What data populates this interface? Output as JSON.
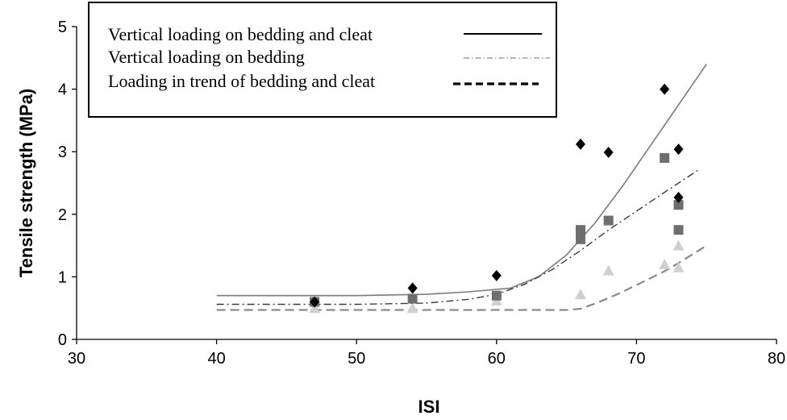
{
  "chart_data": {
    "type": "scatter",
    "xlabel": "ISI",
    "ylabel": "Tensile strength (MPa)",
    "xlim": [
      30,
      80
    ],
    "ylim": [
      0,
      5
    ],
    "xticks": [
      30,
      40,
      50,
      60,
      70,
      80
    ],
    "yticks": [
      0,
      1,
      2,
      3,
      4,
      5
    ],
    "grid": false,
    "legend": {
      "placement": "top-left",
      "entries": [
        "Vertical loading on bedding and cleat",
        "Vertical loading on bedding",
        "Loading in trend of bedding and cleat"
      ]
    },
    "series": [
      {
        "name": "Vertical loading on bedding and cleat",
        "marker": "diamond",
        "color": "#000000",
        "line_style": "solid",
        "points": [
          [
            47,
            0.6
          ],
          [
            54,
            0.82
          ],
          [
            60,
            1.02
          ],
          [
            66,
            3.12
          ],
          [
            68,
            2.99
          ],
          [
            72,
            4.0
          ],
          [
            73,
            3.04
          ],
          [
            73,
            2.27
          ]
        ],
        "trend": [
          [
            40,
            0.7
          ],
          [
            45,
            0.7
          ],
          [
            50,
            0.7
          ],
          [
            55,
            0.72
          ],
          [
            58,
            0.76
          ],
          [
            61,
            0.82
          ],
          [
            63,
            1.0
          ],
          [
            65,
            1.35
          ],
          [
            67,
            1.85
          ],
          [
            69,
            2.45
          ],
          [
            71,
            3.1
          ],
          [
            73,
            3.75
          ],
          [
            75,
            4.4
          ]
        ]
      },
      {
        "name": "Vertical loading on bedding",
        "marker": "square",
        "color": "#6e6e6e",
        "line_style": "dash-dot",
        "points": [
          [
            47,
            0.6
          ],
          [
            54,
            0.65
          ],
          [
            60,
            0.7
          ],
          [
            66,
            1.75
          ],
          [
            66,
            1.6
          ],
          [
            68,
            1.9
          ],
          [
            72,
            2.9
          ],
          [
            73,
            2.15
          ],
          [
            73,
            1.75
          ]
        ],
        "trend": [
          [
            40,
            0.56
          ],
          [
            45,
            0.56
          ],
          [
            50,
            0.56
          ],
          [
            55,
            0.58
          ],
          [
            58,
            0.64
          ],
          [
            60,
            0.72
          ],
          [
            62,
            0.88
          ],
          [
            64,
            1.12
          ],
          [
            66,
            1.42
          ],
          [
            68,
            1.75
          ],
          [
            70,
            2.05
          ],
          [
            72,
            2.35
          ],
          [
            74.5,
            2.72
          ]
        ]
      },
      {
        "name": "Loading in trend of bedding and cleat",
        "marker": "triangle",
        "color": "#d0d0d0",
        "line_style": "dashed",
        "points": [
          [
            47,
            0.5
          ],
          [
            54,
            0.5
          ],
          [
            60,
            0.62
          ],
          [
            66,
            0.72
          ],
          [
            68,
            1.1
          ],
          [
            72,
            1.2
          ],
          [
            73,
            1.5
          ],
          [
            73,
            1.15
          ]
        ],
        "trend": [
          [
            40,
            0.47
          ],
          [
            45,
            0.47
          ],
          [
            50,
            0.47
          ],
          [
            55,
            0.47
          ],
          [
            60,
            0.47
          ],
          [
            65,
            0.47
          ],
          [
            66,
            0.49
          ],
          [
            67,
            0.57
          ],
          [
            68,
            0.66
          ],
          [
            69,
            0.76
          ],
          [
            70,
            0.87
          ],
          [
            71,
            0.98
          ],
          [
            72,
            1.09
          ],
          [
            73,
            1.22
          ],
          [
            74,
            1.36
          ],
          [
            75,
            1.5
          ]
        ]
      }
    ]
  }
}
